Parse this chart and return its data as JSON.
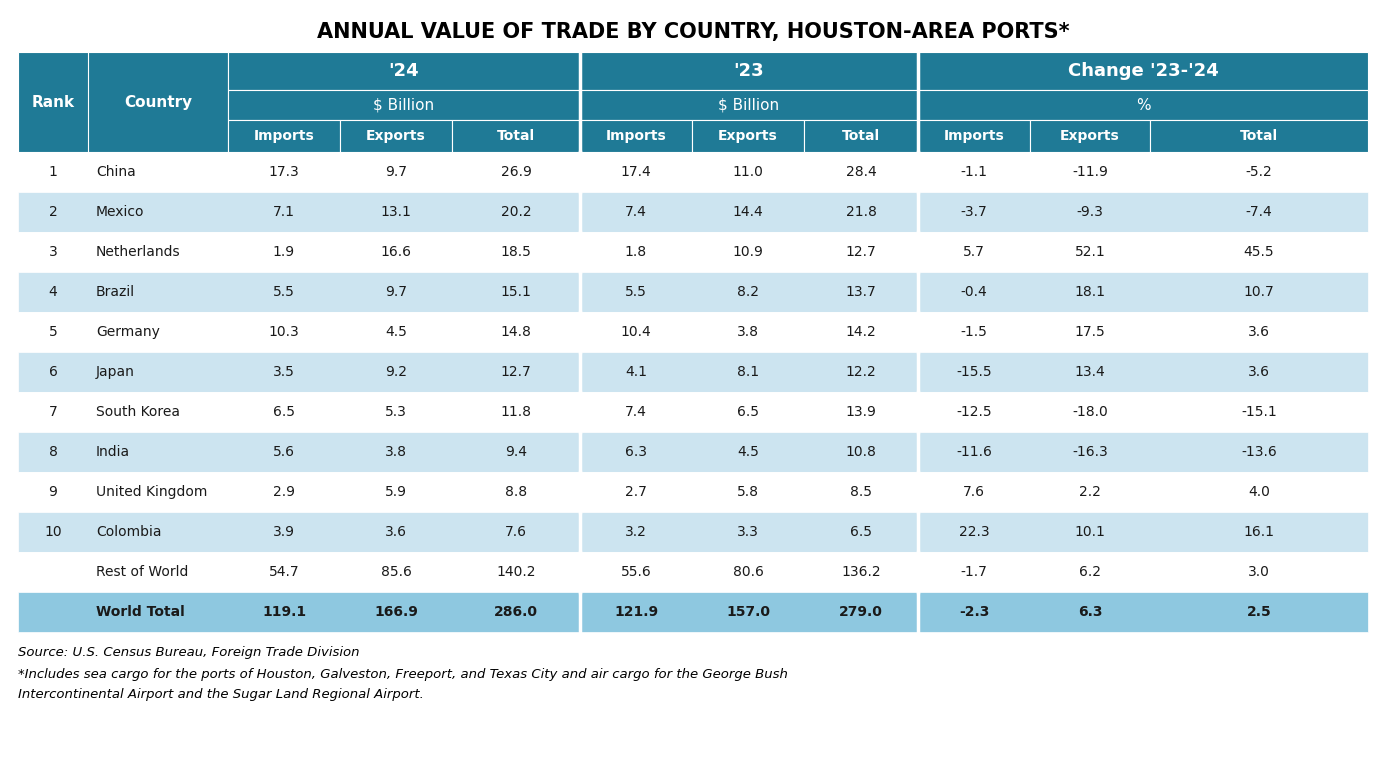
{
  "title": "ANNUAL VALUE OF TRADE BY COUNTRY, HOUSTON-AREA PORTS*",
  "header_bg": "#1f7a96",
  "row_light": "#cce4f0",
  "row_white": "#ffffff",
  "total_row_bg": "#8ec8e0",
  "text_dark": "#1a1a1a",
  "text_white": "#ffffff",
  "source_text": "Source: U.S. Census Bureau, Foreign Trade Division",
  "footnote_line1": "*Includes sea cargo for the ports of Houston, Galveston, Freeport, and Texas City and air cargo for the George Bush",
  "footnote_line2": "Intercontinental Airport and the Sugar Land Regional Airport.",
  "rows": [
    {
      "rank": "1",
      "country": "China",
      "i24": "17.3",
      "e24": "9.7",
      "t24": "26.9",
      "i23": "17.4",
      "e23": "11.0",
      "t23": "28.4",
      "ic": "-1.1",
      "ec": "-11.9",
      "tc": "-5.2",
      "bold": false
    },
    {
      "rank": "2",
      "country": "Mexico",
      "i24": "7.1",
      "e24": "13.1",
      "t24": "20.2",
      "i23": "7.4",
      "e23": "14.4",
      "t23": "21.8",
      "ic": "-3.7",
      "ec": "-9.3",
      "tc": "-7.4",
      "bold": false
    },
    {
      "rank": "3",
      "country": "Netherlands",
      "i24": "1.9",
      "e24": "16.6",
      "t24": "18.5",
      "i23": "1.8",
      "e23": "10.9",
      "t23": "12.7",
      "ic": "5.7",
      "ec": "52.1",
      "tc": "45.5",
      "bold": false
    },
    {
      "rank": "4",
      "country": "Brazil",
      "i24": "5.5",
      "e24": "9.7",
      "t24": "15.1",
      "i23": "5.5",
      "e23": "8.2",
      "t23": "13.7",
      "ic": "-0.4",
      "ec": "18.1",
      "tc": "10.7",
      "bold": false
    },
    {
      "rank": "5",
      "country": "Germany",
      "i24": "10.3",
      "e24": "4.5",
      "t24": "14.8",
      "i23": "10.4",
      "e23": "3.8",
      "t23": "14.2",
      "ic": "-1.5",
      "ec": "17.5",
      "tc": "3.6",
      "bold": false
    },
    {
      "rank": "6",
      "country": "Japan",
      "i24": "3.5",
      "e24": "9.2",
      "t24": "12.7",
      "i23": "4.1",
      "e23": "8.1",
      "t23": "12.2",
      "ic": "-15.5",
      "ec": "13.4",
      "tc": "3.6",
      "bold": false
    },
    {
      "rank": "7",
      "country": "South Korea",
      "i24": "6.5",
      "e24": "5.3",
      "t24": "11.8",
      "i23": "7.4",
      "e23": "6.5",
      "t23": "13.9",
      "ic": "-12.5",
      "ec": "-18.0",
      "tc": "-15.1",
      "bold": false
    },
    {
      "rank": "8",
      "country": "India",
      "i24": "5.6",
      "e24": "3.8",
      "t24": "9.4",
      "i23": "6.3",
      "e23": "4.5",
      "t23": "10.8",
      "ic": "-11.6",
      "ec": "-16.3",
      "tc": "-13.6",
      "bold": false
    },
    {
      "rank": "9",
      "country": "United Kingdom",
      "i24": "2.9",
      "e24": "5.9",
      "t24": "8.8",
      "i23": "2.7",
      "e23": "5.8",
      "t23": "8.5",
      "ic": "7.6",
      "ec": "2.2",
      "tc": "4.0",
      "bold": false
    },
    {
      "rank": "10",
      "country": "Colombia",
      "i24": "3.9",
      "e24": "3.6",
      "t24": "7.6",
      "i23": "3.2",
      "e23": "3.3",
      "t23": "6.5",
      "ic": "22.3",
      "ec": "10.1",
      "tc": "16.1",
      "bold": false
    },
    {
      "rank": "",
      "country": "Rest of World",
      "i24": "54.7",
      "e24": "85.6",
      "t24": "140.2",
      "i23": "55.6",
      "e23": "80.6",
      "t23": "136.2",
      "ic": "-1.7",
      "ec": "6.2",
      "tc": "3.0",
      "bold": false
    },
    {
      "rank": "",
      "country": "World Total",
      "i24": "119.1",
      "e24": "166.9",
      "t24": "286.0",
      "i23": "121.9",
      "e23": "157.0",
      "t23": "279.0",
      "ic": "-2.3",
      "ec": "6.3",
      "tc": "2.5",
      "bold": true
    }
  ]
}
